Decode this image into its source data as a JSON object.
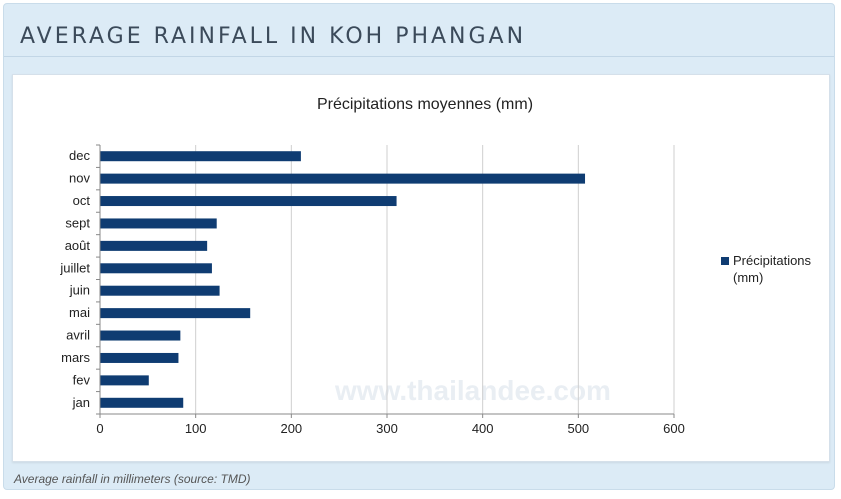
{
  "header": {
    "title": "AVERAGE RAINFALL IN KOH PHANGAN"
  },
  "caption": "Average rainfall in millimeters (source: TMD)",
  "watermark": "www.thailandee.com",
  "colors": {
    "bar": "#0f3c72",
    "panel": "#dcebf6",
    "grid": "#cfcfcf"
  },
  "chart_data": {
    "type": "bar",
    "orientation": "horizontal",
    "title": "Précipitations moyennes (mm)",
    "categories": [
      "dec",
      "nov",
      "oct",
      "sept",
      "août",
      "juillet",
      "juin",
      "mai",
      "avril",
      "mars",
      "fev",
      "jan"
    ],
    "series": [
      {
        "name": "Précipitations (mm)",
        "values": [
          210,
          507,
          310,
          122,
          112,
          117,
          125,
          157,
          84,
          82,
          51,
          87
        ]
      }
    ],
    "xlim": [
      0,
      600
    ],
    "xticks": [
      0,
      100,
      200,
      300,
      400,
      500,
      600
    ],
    "grid": true,
    "legend": "right"
  }
}
